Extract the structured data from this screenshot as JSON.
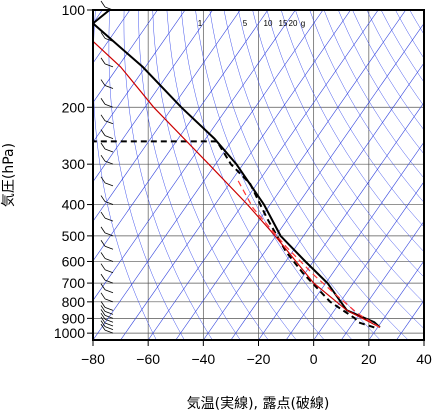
{
  "chart_data": {
    "type": "line",
    "title": "",
    "xlabel": "気温(実線), 露点(破線)",
    "ylabel": "気圧(hPa)",
    "xlim": [
      -80,
      40
    ],
    "ylim_hpa": [
      1050,
      100
    ],
    "y_scale": "log",
    "x_ticks": [
      -80,
      -60,
      -40,
      -20,
      0,
      20,
      40
    ],
    "y_ticks": [
      1000,
      900,
      800,
      700,
      600,
      500,
      400,
      300,
      200,
      100
    ],
    "grid": true,
    "mixing_ratio_labels": [
      "1",
      "5",
      "10",
      "15",
      "20",
      "g"
    ],
    "series": [
      {
        "color": "#000000",
        "style": "solid",
        "points": [
          [
            24,
            960
          ],
          [
            22,
            925
          ],
          [
            12,
            850
          ],
          [
            5,
            700
          ],
          [
            -3,
            600
          ],
          [
            -12,
            500
          ],
          [
            -18,
            400
          ],
          [
            -28,
            300
          ],
          [
            -36,
            250
          ],
          [
            -48,
            200
          ],
          [
            -62,
            150
          ],
          [
            -80,
            110
          ],
          [
            -74,
            100
          ]
        ]
      },
      {
        "color": "#000000",
        "style": "dashed",
        "points": [
          [
            22,
            960
          ],
          [
            16,
            925
          ],
          [
            15,
            900
          ],
          [
            6,
            800
          ],
          [
            -4,
            650
          ],
          [
            -10,
            560
          ],
          [
            -17,
            440
          ],
          [
            -23,
            345
          ],
          [
            -30,
            300
          ],
          [
            -35,
            255
          ],
          [
            -80,
            255
          ]
        ]
      },
      {
        "color": "#cc0000",
        "style": "solid",
        "points": [
          [
            24,
            960
          ],
          [
            12,
            850
          ],
          [
            0,
            700
          ],
          [
            -14,
            500
          ],
          [
            -24,
            400
          ],
          [
            -38,
            300
          ],
          [
            -58,
            200
          ],
          [
            -70,
            150
          ],
          [
            -80,
            125
          ]
        ]
      },
      {
        "color": "#ff3333",
        "style": "dashed",
        "points": [
          [
            24,
            960
          ],
          [
            16,
            870
          ],
          [
            8,
            760
          ],
          [
            0,
            660
          ],
          [
            -10,
            540
          ],
          [
            -22,
            410
          ],
          [
            -28,
            330
          ]
        ]
      }
    ]
  }
}
